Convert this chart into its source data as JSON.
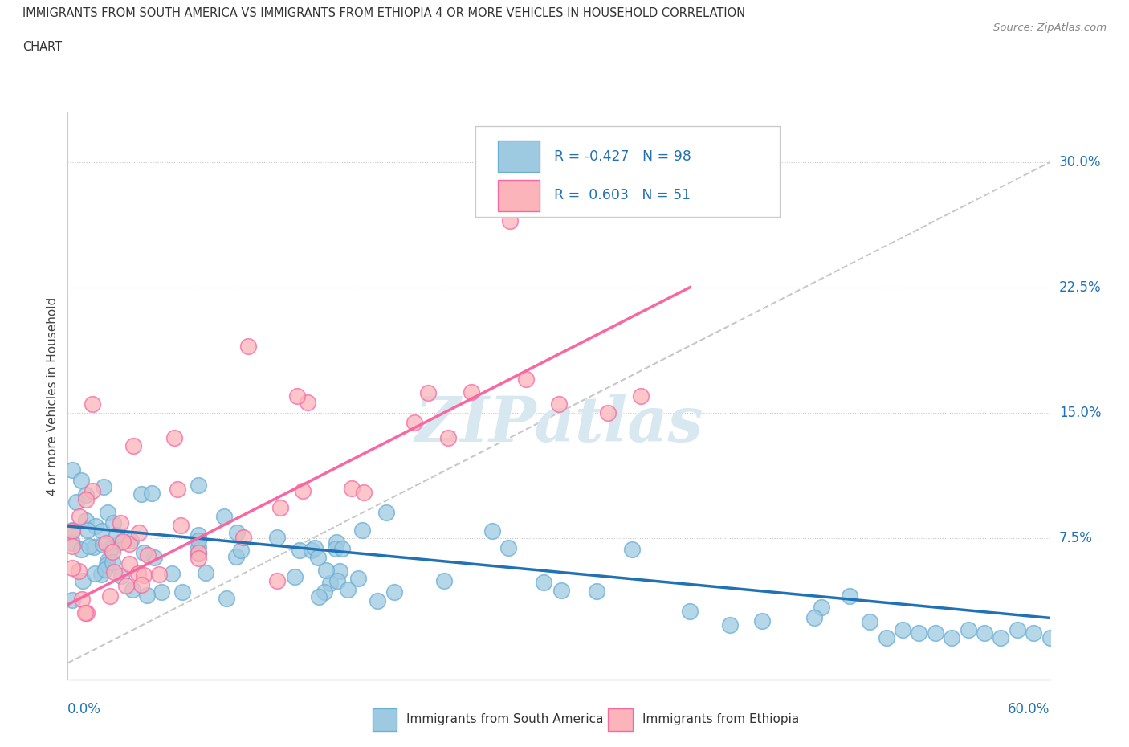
{
  "title_line1": "IMMIGRANTS FROM SOUTH AMERICA VS IMMIGRANTS FROM ETHIOPIA 4 OR MORE VEHICLES IN HOUSEHOLD CORRELATION",
  "title_line2": "CHART",
  "source": "Source: ZipAtlas.com",
  "ylabel": "4 or more Vehicles in Household",
  "yticks_labels": [
    "7.5%",
    "15.0%",
    "22.5%",
    "30.0%"
  ],
  "ytick_vals": [
    0.075,
    0.15,
    0.225,
    0.3
  ],
  "xlim": [
    0.0,
    0.6
  ],
  "ylim": [
    -0.01,
    0.33
  ],
  "blue_R": -0.427,
  "blue_N": 98,
  "pink_R": 0.603,
  "pink_N": 51,
  "blue_color": "#9ecae1",
  "pink_color": "#fbb4b9",
  "blue_line_color": "#2171b5",
  "pink_line_color": "#f768a1",
  "blue_edge_color": "#6baed6",
  "pink_edge_color": "#f768a1",
  "trend_line_color": "#c8c8c8",
  "watermark": "ZIPatlas",
  "legend_label_blue": "Immigrants from South America",
  "legend_label_pink": "Immigrants from Ethiopia",
  "blue_line_start_x": 0.0,
  "blue_line_start_y": 0.082,
  "blue_line_end_x": 0.6,
  "blue_line_end_y": 0.027,
  "pink_line_start_x": 0.0,
  "pink_line_start_y": 0.035,
  "pink_line_end_x": 0.38,
  "pink_line_end_y": 0.225,
  "trend_start_x": 0.0,
  "trend_start_y": 0.0,
  "trend_end_x": 0.6,
  "trend_end_y": 0.3
}
